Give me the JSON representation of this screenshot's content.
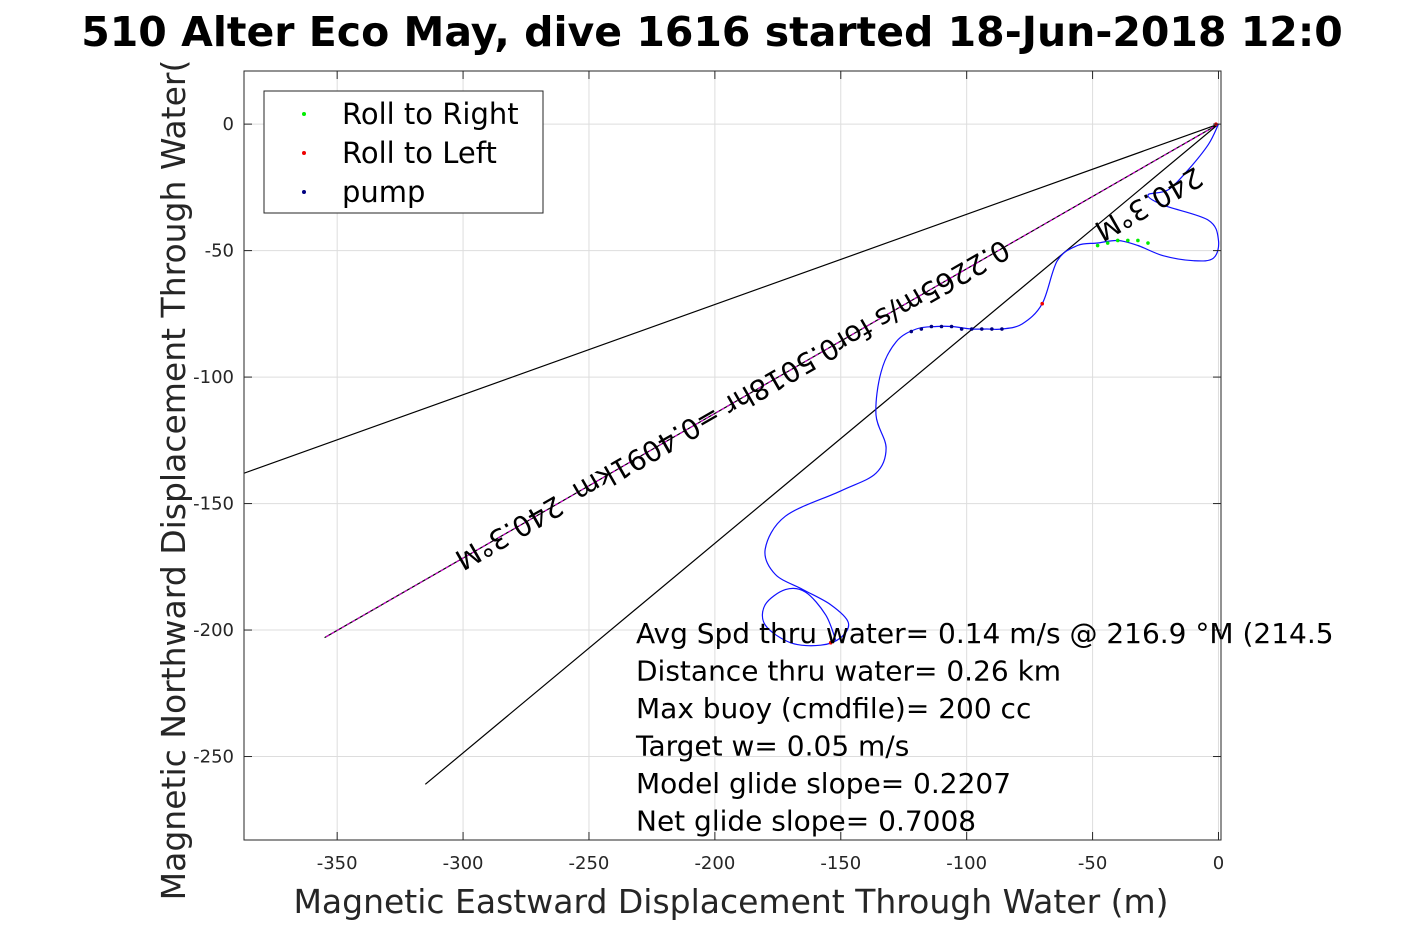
{
  "chart_data": {
    "type": "line",
    "title": "510 Alter Eco May, dive 1616 started 18-Jun-2018 12:0",
    "xlabel": "Magnetic Eastward Displacement Through Water (m)",
    "ylabel": "Magnetic Northward Displacement Through Water(",
    "xlim": [
      -387,
      1
    ],
    "ylim": [
      -283,
      21
    ],
    "xticks": [
      -350,
      -300,
      -250,
      -200,
      -150,
      -100,
      -50,
      0
    ],
    "yticks": [
      0,
      -50,
      -100,
      -150,
      -200,
      -250
    ],
    "xtick_labels": [
      "-350",
      "-300",
      "-250",
      "-200",
      "-150",
      "-100",
      "-50",
      "0"
    ],
    "ytick_labels": [
      "0",
      "-50",
      "-100",
      "-150",
      "-200",
      "-250"
    ],
    "grid": true,
    "legend_position": "top-left",
    "legend": [
      {
        "label": "Roll to Right",
        "color": "#00ee00"
      },
      {
        "label": "Roll to Left",
        "color": "#ee0000"
      },
      {
        "label": "pump",
        "color": "#000080"
      }
    ],
    "colors": {
      "track": "#1010ff",
      "heading_line": "#cc00cc",
      "cone_lines": "#000000",
      "grid": "#dddddd"
    },
    "track": {
      "name": "dive track",
      "x": [
        0,
        -4,
        -12,
        -20,
        -28,
        -22,
        -4,
        0,
        -2,
        -10,
        -22,
        -32,
        -40,
        -48,
        -56,
        -64,
        -70,
        -78,
        -86,
        -92,
        -98,
        -106,
        -112,
        -120,
        -128,
        -134,
        -136,
        -132,
        -136,
        -150,
        -172,
        -180,
        -176,
        -165,
        -154,
        -147,
        -150,
        -158,
        -170,
        -180,
        -180,
        -172,
        -164,
        -156,
        -152
      ],
      "y": [
        0,
        -8,
        -18,
        -26,
        -28,
        -32,
        -38,
        -46,
        -53,
        -54,
        -52,
        -48,
        -46,
        -47,
        -48,
        -54,
        -71,
        -79,
        -81,
        -81,
        -81,
        -80,
        -80,
        -81,
        -86,
        -98,
        -115,
        -128,
        -138,
        -145,
        -155,
        -168,
        -178,
        -184,
        -190,
        -197,
        -203,
        -206,
        -205,
        -198,
        -190,
        -184,
        -185,
        -194,
        -204
      ]
    },
    "pump_points": {
      "x": [
        -86,
        -90,
        -94,
        -98,
        -102,
        -106,
        -110,
        -114,
        -118,
        -122
      ],
      "y": [
        -81,
        -81,
        -81,
        -81,
        -81,
        -80,
        -80,
        -80,
        -81,
        -82
      ]
    },
    "roll_right_points": {
      "x": [
        -28,
        -32,
        -36,
        -40,
        -44,
        -48
      ],
      "y": [
        -47,
        -46,
        -46,
        -46,
        -47,
        -48
      ]
    },
    "roll_left_points": {
      "x": [
        -70,
        -154,
        -1
      ],
      "y": [
        -71,
        -205,
        0
      ]
    },
    "heading_line": {
      "x": [
        0,
        -355
      ],
      "y": [
        0,
        -203
      ]
    },
    "cone_lines": [
      {
        "x": [
          0,
          -387
        ],
        "y": [
          0,
          -138
        ]
      },
      {
        "x": [
          0,
          -315
        ],
        "y": [
          0,
          -261
        ]
      }
    ],
    "heading_labels": [
      {
        "text": "240.3°M",
        "x": -282,
        "y": -161,
        "angle": 150.2
      },
      {
        "text": "240.3°M",
        "x": -28,
        "y": -31,
        "angle": 150.2
      }
    ],
    "track_summary": {
      "text": "0.2265m/s for0.5018hr =0.4091km",
      "x": -170,
      "y": -97,
      "angle": 150.2
    },
    "stats": [
      "Avg Spd thru water=  0.14 m/s @ 216.9 °M (214.5",
      "Distance thru water=  0.26 km",
      "Max buoy (cmdfile)= 200 cc",
      "Target w= 0.05 m/s",
      "Model glide slope= 0.2207",
      "Net glide slope= 0.7008"
    ]
  }
}
